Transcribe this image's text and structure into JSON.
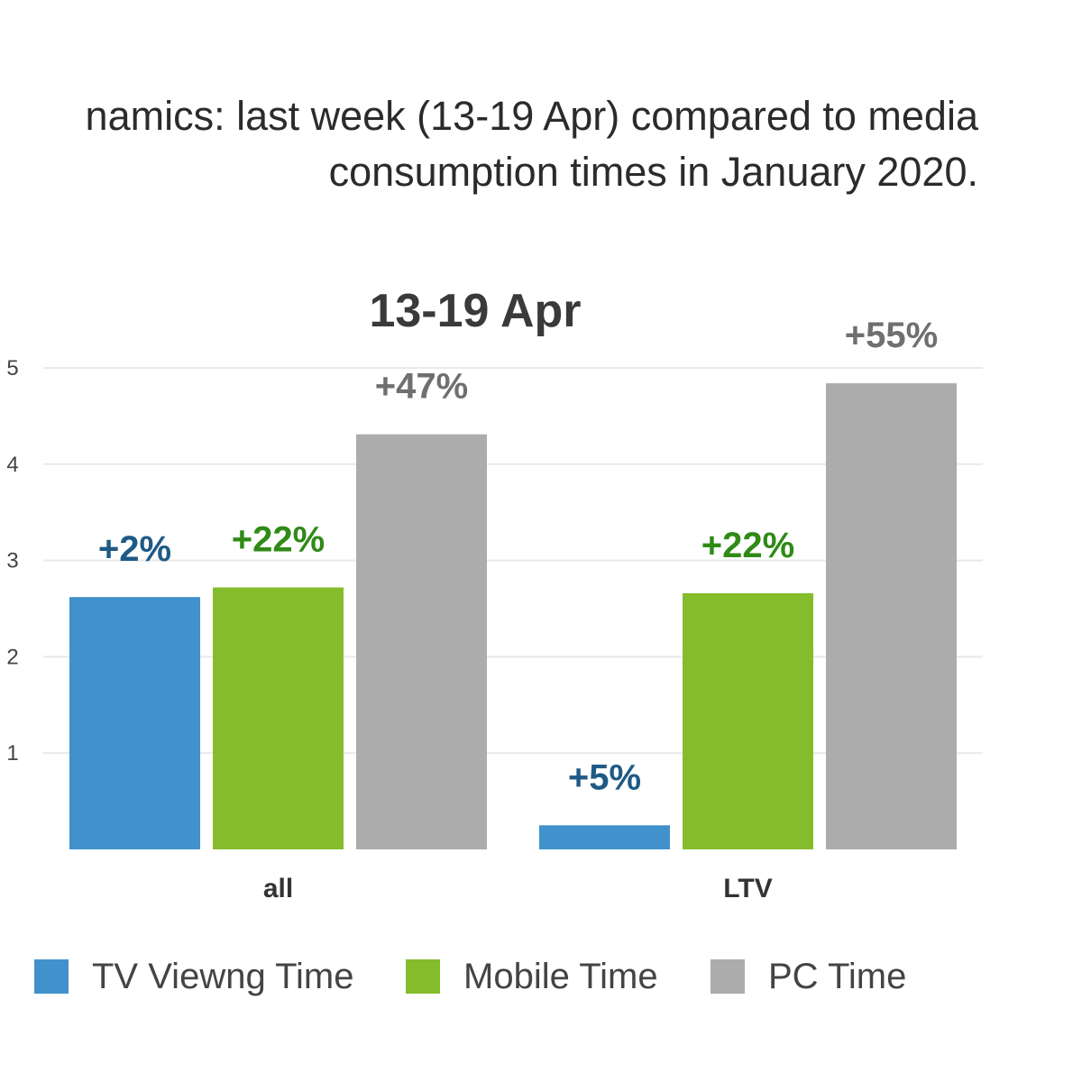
{
  "subtitle": {
    "line1": "namics: last week (13-19 Apr) compared to media",
    "line2": "consumption times in January 2020."
  },
  "chart_data": {
    "type": "bar",
    "title": "13-19 Apr",
    "categories": [
      "all",
      "LTV"
    ],
    "ylim": [
      0,
      5
    ],
    "yticks": [
      1,
      2,
      3,
      4,
      5
    ],
    "grid": true,
    "legend_position": "bottom",
    "series": [
      {
        "name": "TV Viewng Time",
        "color": "#4191cc",
        "label_color": "#1f5a86",
        "values": [
          2.62,
          0.25
        ],
        "labels": [
          "+2%",
          "+5%"
        ]
      },
      {
        "name": "Mobile Time",
        "color": "#84bc2b",
        "label_color": "#2f8a16",
        "values": [
          2.72,
          2.66
        ],
        "labels": [
          "+22%",
          "+22%"
        ]
      },
      {
        "name": "PC Time",
        "color": "#acacac",
        "label_color": "#6f6f6f",
        "values": [
          4.31,
          4.84
        ],
        "labels": [
          "+47%",
          "+55%"
        ]
      }
    ]
  }
}
